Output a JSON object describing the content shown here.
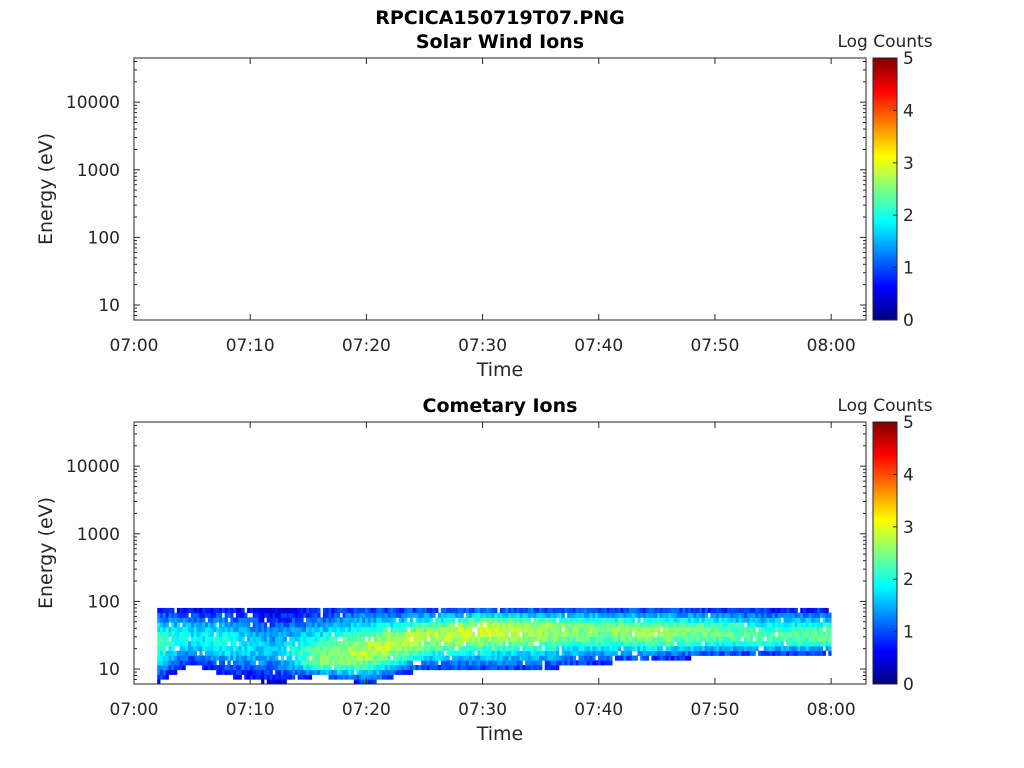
{
  "figure": {
    "title": "RPCICA150719T07.PNG"
  },
  "colors": {
    "jet": [
      "#00007f",
      "#0000ff",
      "#007fff",
      "#00ffff",
      "#7fff7f",
      "#ffff00",
      "#ff7f00",
      "#ff0000",
      "#7f0000"
    ],
    "axis": "#262626"
  },
  "chart_data": [
    {
      "type": "heatmap",
      "title": "Solar Wind Ions",
      "xlabel": "Time",
      "ylabel": "Energy (eV)",
      "x_ticks": [
        "07:00",
        "07:10",
        "07:20",
        "07:30",
        "07:40",
        "07:50",
        "08:00"
      ],
      "y_ticks": [
        "10",
        "100",
        "1000",
        "10000"
      ],
      "y_scale": "log",
      "ylim": [
        6,
        45000
      ],
      "xlim": [
        "07:00",
        "08:03"
      ],
      "colorbar": {
        "label": "Log Counts",
        "ticks": [
          "0",
          "1",
          "2",
          "3",
          "4",
          "5"
        ],
        "range": [
          0,
          5
        ]
      },
      "data": "empty"
    },
    {
      "type": "heatmap",
      "title": "Cometary Ions",
      "xlabel": "Time",
      "ylabel": "Energy (eV)",
      "x_ticks": [
        "07:00",
        "07:10",
        "07:20",
        "07:30",
        "07:40",
        "07:50",
        "08:00"
      ],
      "y_ticks": [
        "10",
        "100",
        "1000",
        "10000"
      ],
      "y_scale": "log",
      "ylim": [
        6,
        45000
      ],
      "xlim": [
        "07:00",
        "08:03"
      ],
      "colorbar": {
        "label": "Log Counts",
        "ticks": [
          "0",
          "1",
          "2",
          "3",
          "4",
          "5"
        ],
        "range": [
          0,
          5
        ]
      },
      "data_time_range": [
        "07:02",
        "08:00"
      ],
      "data_energy_range_eV": [
        6,
        80
      ],
      "profile": [
        {
          "t": "07:02",
          "lo": 6,
          "peak": 25,
          "hi": 80,
          "max_log_counts": 2.2
        },
        {
          "t": "07:05",
          "lo": 12,
          "peak": 30,
          "hi": 80,
          "max_log_counts": 1.8
        },
        {
          "t": "07:08",
          "lo": 8,
          "peak": 25,
          "hi": 80,
          "max_log_counts": 2.0
        },
        {
          "t": "07:12",
          "lo": 6,
          "peak": 20,
          "hi": 80,
          "max_log_counts": 1.5
        },
        {
          "t": "07:16",
          "lo": 8,
          "peak": 12,
          "hi": 80,
          "max_log_counts": 2.5
        },
        {
          "t": "07:20",
          "lo": 6,
          "peak": 18,
          "hi": 80,
          "max_log_counts": 2.8
        },
        {
          "t": "07:25",
          "lo": 10,
          "peak": 30,
          "hi": 80,
          "max_log_counts": 2.7
        },
        {
          "t": "07:30",
          "lo": 10,
          "peak": 40,
          "hi": 80,
          "max_log_counts": 2.9
        },
        {
          "t": "07:35",
          "lo": 10,
          "peak": 40,
          "hi": 80,
          "max_log_counts": 2.7
        },
        {
          "t": "07:40",
          "lo": 12,
          "peak": 40,
          "hi": 80,
          "max_log_counts": 2.5
        },
        {
          "t": "07:45",
          "lo": 14,
          "peak": 35,
          "hi": 80,
          "max_log_counts": 2.7
        },
        {
          "t": "07:50",
          "lo": 15,
          "peak": 35,
          "hi": 80,
          "max_log_counts": 2.4
        },
        {
          "t": "07:55",
          "lo": 16,
          "peak": 30,
          "hi": 80,
          "max_log_counts": 2.3
        },
        {
          "t": "08:00",
          "lo": 16,
          "peak": 30,
          "hi": 80,
          "max_log_counts": 2.4
        }
      ]
    }
  ]
}
